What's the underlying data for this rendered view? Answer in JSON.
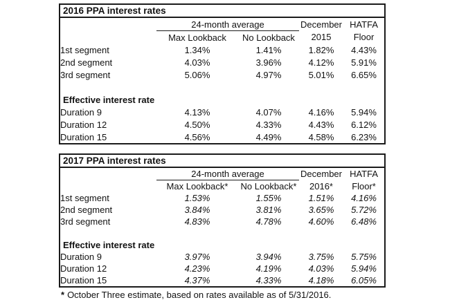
{
  "colors": {
    "background": "#ffffff",
    "text": "#111111",
    "border": "#1a1a1a"
  },
  "tables": [
    {
      "title": "2016 PPA interest rates",
      "group_header": "24-month average",
      "col_headers": {
        "max": "Max Lookback",
        "no": "No Lookback",
        "dec_line1": "December",
        "dec_line2": "2015",
        "floor_line1": "HATFA",
        "floor_line2": "Floor"
      },
      "section_label": "Effective interest rate",
      "segment_rows": [
        {
          "label": "1st segment",
          "values": [
            "1.34%",
            "1.41%",
            "1.82%",
            "4.43%"
          ]
        },
        {
          "label": "2nd segment",
          "values": [
            "4.03%",
            "3.96%",
            "4.12%",
            "5.91%"
          ]
        },
        {
          "label": "3rd segment",
          "values": [
            "5.06%",
            "4.97%",
            "5.01%",
            "6.65%"
          ]
        }
      ],
      "duration_rows": [
        {
          "label": "Duration 9",
          "values": [
            "4.13%",
            "4.07%",
            "4.16%",
            "5.94%"
          ]
        },
        {
          "label": "Duration 12",
          "values": [
            "4.50%",
            "4.33%",
            "4.43%",
            "6.12%"
          ]
        },
        {
          "label": "Duration 15",
          "values": [
            "4.56%",
            "4.49%",
            "4.58%",
            "6.23%"
          ]
        }
      ]
    },
    {
      "title": "2017 PPA interest rates",
      "group_header": "24-month average",
      "col_headers": {
        "max": "Max Lookback*",
        "no": "No Lookback*",
        "dec_line1": "December",
        "dec_line2": "2016*",
        "floor_line1": "HATFA",
        "floor_line2": "Floor*"
      },
      "section_label": "Effective interest rate",
      "segment_rows": [
        {
          "label": "1st segment",
          "values": [
            "1.53%",
            "1.55%",
            "1.51%",
            "4.16%"
          ]
        },
        {
          "label": "2nd segment",
          "values": [
            "3.84%",
            "3.81%",
            "3.65%",
            "5.72%"
          ]
        },
        {
          "label": "3rd segment",
          "values": [
            "4.83%",
            "4.78%",
            "4.60%",
            "6.48%"
          ]
        }
      ],
      "duration_rows": [
        {
          "label": "Duration 9",
          "values": [
            "3.97%",
            "3.94%",
            "3.75%",
            "5.75%"
          ]
        },
        {
          "label": "Duration 12",
          "values": [
            "4.23%",
            "4.19%",
            "4.03%",
            "5.94%"
          ]
        },
        {
          "label": "Duration 15",
          "values": [
            "4.37%",
            "4.33%",
            "4.18%",
            "6.05%"
          ]
        }
      ]
    }
  ],
  "footnote": {
    "marker": "*",
    "text": "October Three estimate, based on rates available as of 5/31/2016."
  }
}
